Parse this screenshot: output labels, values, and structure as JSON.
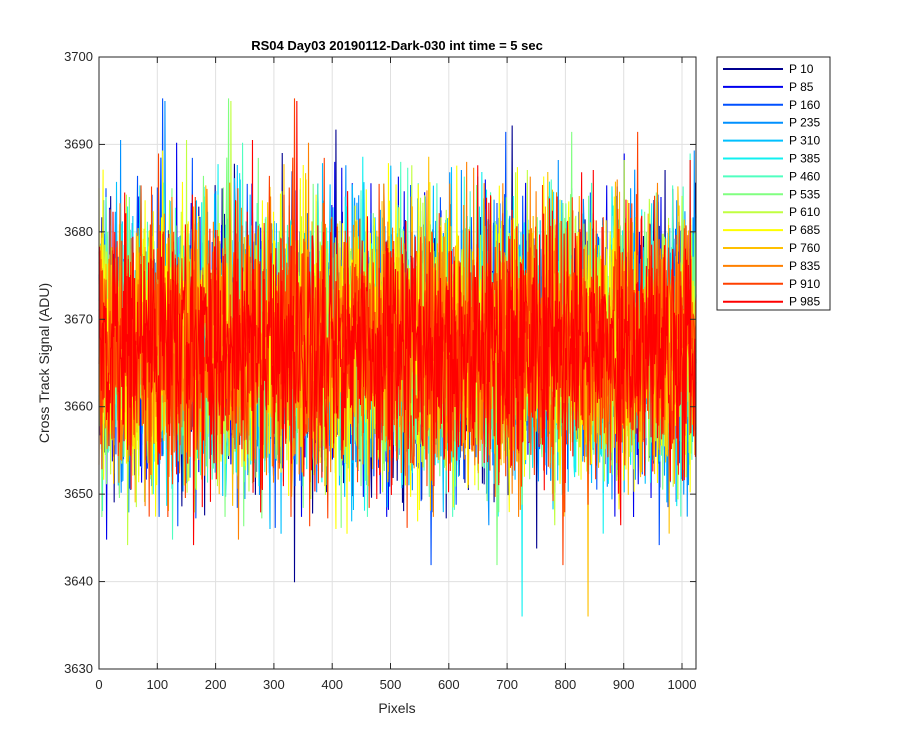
{
  "chart_data": {
    "type": "line",
    "title": "RS04 Day03 20190112-Dark-030 int time = 5 sec",
    "xlabel": "Pixels",
    "ylabel": "Cross Track Signal (ADU)",
    "xlim": [
      0,
      1024
    ],
    "ylim": [
      3630,
      3700
    ],
    "xticks": [
      0,
      100,
      200,
      300,
      400,
      500,
      600,
      700,
      800,
      900,
      1000
    ],
    "yticks": [
      3630,
      3640,
      3650,
      3660,
      3670,
      3680,
      3690,
      3700
    ],
    "grid": true,
    "legend_position": "outside-top-right",
    "noise_model": {
      "n_points": 1024,
      "mean": 3667,
      "typical_range": [
        3650,
        3684
      ],
      "extremes": [
        3636,
        3696
      ]
    },
    "series": [
      {
        "name": "P 10",
        "color": "#00008f"
      },
      {
        "name": "P 85",
        "color": "#0000ef"
      },
      {
        "name": "P 160",
        "color": "#0050ff"
      },
      {
        "name": "P 235",
        "color": "#0090ff"
      },
      {
        "name": "P 310",
        "color": "#00c0ff"
      },
      {
        "name": "P 385",
        "color": "#10f0f0"
      },
      {
        "name": "P 460",
        "color": "#50ffc0"
      },
      {
        "name": "P 535",
        "color": "#80ff80"
      },
      {
        "name": "P 610",
        "color": "#c0ff40"
      },
      {
        "name": "P 685",
        "color": "#ffff00"
      },
      {
        "name": "P 760",
        "color": "#ffc000"
      },
      {
        "name": "P 835",
        "color": "#ff8000"
      },
      {
        "name": "P 910",
        "color": "#ff4000"
      },
      {
        "name": "P 985",
        "color": "#ff0000"
      }
    ]
  }
}
